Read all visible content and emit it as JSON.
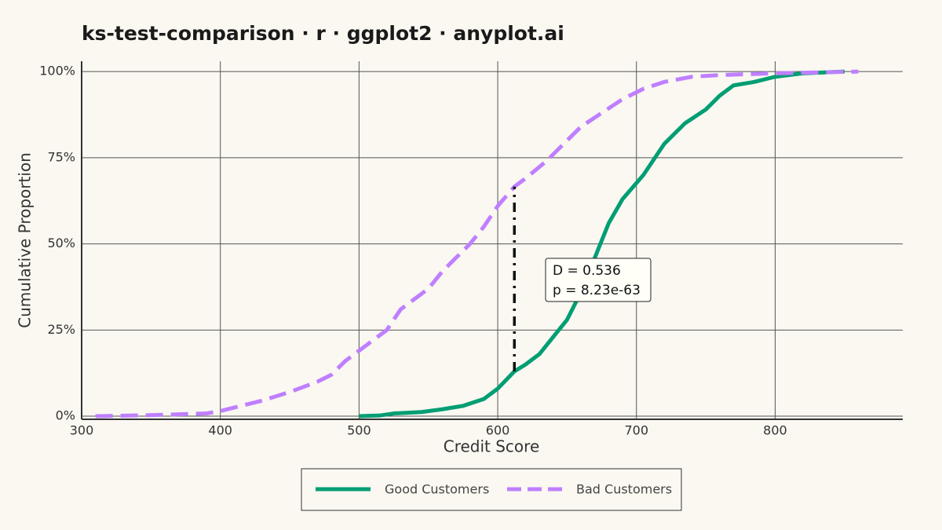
{
  "chart_data": {
    "type": "line",
    "title": "ks-test-comparison · r · ggplot2 · anyplot.ai",
    "x_label": "Credit Score",
    "y_label": "Cumulative Proportion",
    "series": [
      {
        "name": "Good Customers",
        "color": "#009e73",
        "dash": "solid",
        "x": [
          500,
          515,
          525,
          545,
          560,
          575,
          590,
          600,
          612,
          620,
          630,
          640,
          650,
          660,
          670,
          680,
          690,
          705,
          720,
          735,
          750,
          760,
          770,
          785,
          800,
          820,
          850
        ],
        "values": [
          0,
          0.002,
          0.008,
          0.012,
          0.02,
          0.03,
          0.05,
          0.08,
          0.13,
          0.15,
          0.18,
          0.23,
          0.28,
          0.36,
          0.46,
          0.56,
          0.63,
          0.7,
          0.79,
          0.85,
          0.89,
          0.93,
          0.96,
          0.97,
          0.985,
          0.995,
          1.0
        ]
      },
      {
        "name": "Bad Customers",
        "color": "#bf7fff",
        "dash": "dashed",
        "x": [
          310,
          350,
          390,
          400,
          410,
          430,
          450,
          470,
          480,
          490,
          500,
          510,
          520,
          530,
          550,
          560,
          570,
          580,
          590,
          600,
          612,
          620,
          635,
          650,
          660,
          675,
          690,
          705,
          720,
          740,
          760,
          800,
          860
        ],
        "values": [
          0,
          0.003,
          0.008,
          0.015,
          0.025,
          0.045,
          0.07,
          0.1,
          0.12,
          0.16,
          0.19,
          0.22,
          0.25,
          0.31,
          0.37,
          0.42,
          0.46,
          0.5,
          0.55,
          0.61,
          0.666,
          0.69,
          0.74,
          0.8,
          0.84,
          0.88,
          0.92,
          0.95,
          0.97,
          0.985,
          0.99,
          0.995,
          1.0
        ]
      }
    ],
    "d_segment": {
      "x": 612,
      "y_bottom": 0.13,
      "y_top": 0.666
    },
    "annotations": [
      "D = 0.536",
      "p = 8.23e-63"
    ],
    "xlim": [
      300,
      892
    ],
    "ylim": [
      -0.009,
      1.03
    ],
    "xticks": [
      300,
      400,
      500,
      600,
      700,
      800
    ],
    "yticks": [
      {
        "value": 0,
        "label": "0%"
      },
      {
        "value": 0.25,
        "label": "25%"
      },
      {
        "value": 0.5,
        "label": "50%"
      },
      {
        "value": 0.75,
        "label": "75%"
      },
      {
        "value": 1,
        "label": "100%"
      }
    ],
    "grid": true,
    "legend": "bottom"
  }
}
